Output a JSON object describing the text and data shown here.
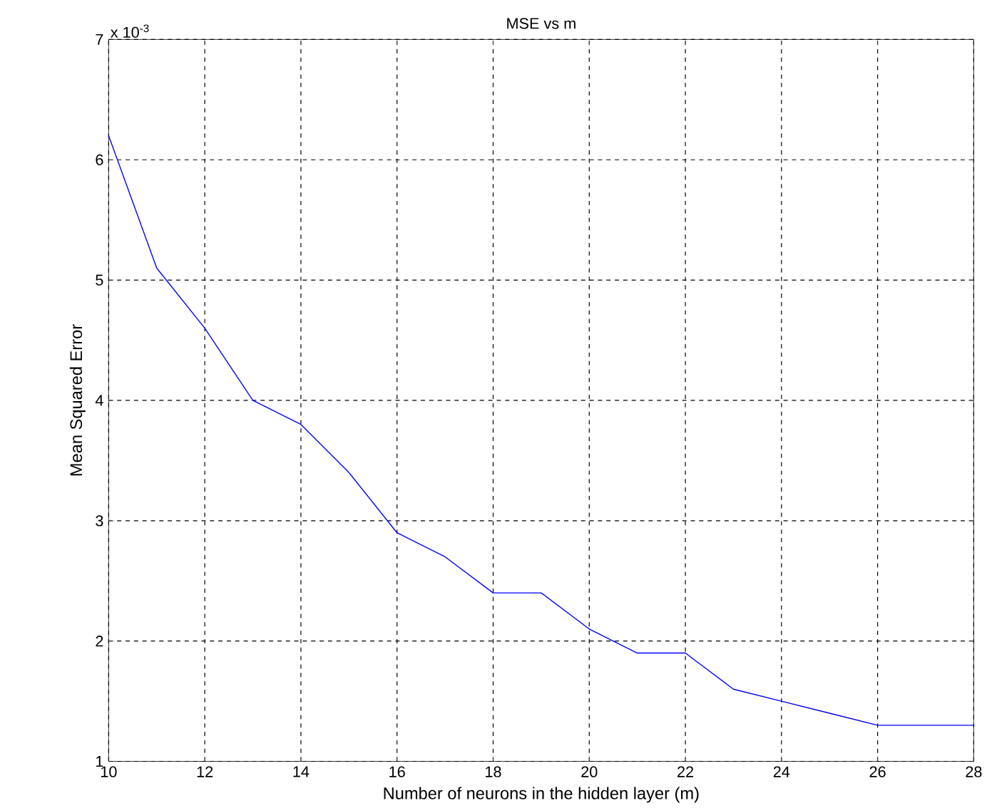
{
  "chart_data": {
    "type": "line",
    "title": "MSE vs m",
    "xlabel": "Number of neurons in the hidden layer (m)",
    "ylabel": "Mean Squared Error",
    "annotations": [
      "x 10$^{-3}$"
    ],
    "x": [
      10,
      11,
      12,
      13,
      14,
      15,
      16,
      17,
      18,
      19,
      20,
      21,
      22,
      23,
      24,
      25,
      26,
      27,
      28
    ],
    "series": [
      {
        "color": "#0000ff",
        "values": [
          6.2,
          5.1,
          4.6,
          4.0,
          3.8,
          3.4,
          2.9,
          2.7,
          2.4,
          2.4,
          2.1,
          1.9,
          1.9,
          1.6,
          1.5,
          1.4,
          1.3,
          1.3,
          1.3
        ]
      }
    ],
    "xlim": [
      10,
      28
    ],
    "ylim": [
      1,
      7
    ],
    "xticks": [
      10,
      12,
      14,
      16,
      18,
      20,
      22,
      24,
      26,
      28
    ],
    "yticks": [
      1,
      2,
      3,
      4,
      5,
      6,
      7
    ],
    "grid": true,
    "line_style": "solid",
    "marker": "none"
  }
}
